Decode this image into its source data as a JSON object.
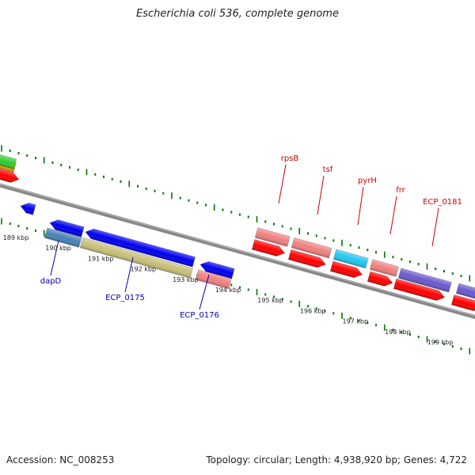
{
  "title": "Escherichia coli 536, complete genome",
  "footer": {
    "accession": "Accession: NC_008253",
    "summary": "Topology: circular; Length: 4,938,920 bp; Genes: 4,722"
  },
  "scale_labels": [
    "189 kbp",
    "190 kbp",
    "191 kbp",
    "192 kbp",
    "193 kbp",
    "194 kbp",
    "195 kbp",
    "196 kbp",
    "197 kbp",
    "198 kbp",
    "199 kbp"
  ],
  "forward_gene_labels": [
    "rpsB",
    "tsf",
    "pyrH",
    "frr",
    "ECP_0181"
  ],
  "reverse_gene_labels": [
    "dapD",
    "ECP_0175",
    "ECP_0176"
  ],
  "colors": {
    "cds": "#ff0000",
    "gene_blue": "#0000ee",
    "rRNA_pink": "#f08080",
    "cyan": "#22c6f0",
    "purple": "#6a5acd",
    "olive": "#c8bf7a",
    "steelblue": "#4682b4",
    "green": "#33cc33",
    "orange": "#ffa500",
    "backbone": "#888888",
    "tick_green": "#007700",
    "label_red": "#cc0000",
    "label_blue": "#0000aa"
  }
}
